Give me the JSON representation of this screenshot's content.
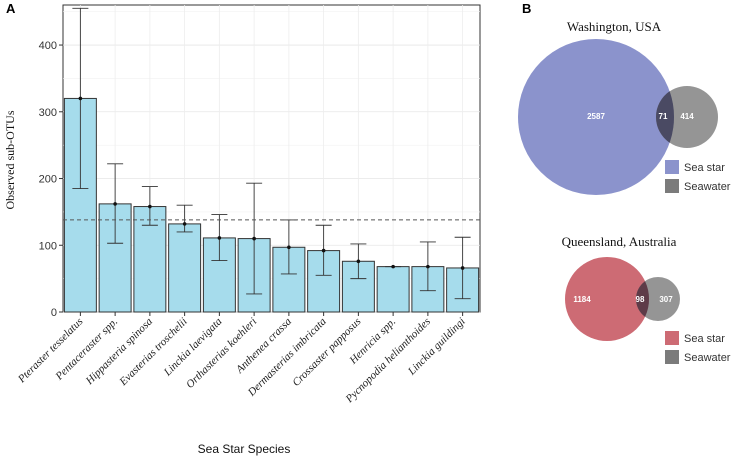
{
  "chart_data": [
    {
      "type": "bar",
      "panel_label": "A",
      "xlabel": "Sea Star Species",
      "ylabel": "Observed sub-OTUs",
      "ylim": [
        0,
        460
      ],
      "yticks": [
        0,
        100,
        200,
        300,
        400
      ],
      "grid": true,
      "reference_line": 138,
      "error_bars": true,
      "bar_color": "#a6dcec",
      "categories": [
        "Pteraster tesselatus",
        "Pentaceraster spp.",
        "Hippasteria spinosa",
        "Evasterias troschelii",
        "Linckia laevigata",
        "Orthasterias koehleri",
        "Anthenea crassa",
        "Dermasterias imbricata",
        "Crossaster papposus",
        "Henricia spp.",
        "Pycnopodia helianthoides",
        "Linckia guildingi"
      ],
      "values": [
        320,
        162,
        158,
        132,
        111,
        110,
        97,
        92,
        76,
        68,
        68,
        66
      ],
      "err_low": [
        185,
        103,
        130,
        120,
        77,
        27,
        57,
        55,
        50,
        68,
        32,
        20
      ],
      "err_high": [
        455,
        222,
        188,
        160,
        146,
        193,
        138,
        130,
        102,
        68,
        105,
        112
      ]
    },
    {
      "type": "venn",
      "panel_label": "B",
      "title": "Washington, USA",
      "sets": [
        {
          "name": "Sea star",
          "only": "2587",
          "color": "#8b93cc"
        },
        {
          "name": "Seawater",
          "only": "414",
          "color": "#7b7b7b"
        }
      ],
      "overlap": "71"
    },
    {
      "type": "venn",
      "title": "Queensland, Australia",
      "sets": [
        {
          "name": "Sea star",
          "only": "1184",
          "color": "#cd6b74"
        },
        {
          "name": "Seawater",
          "only": "307",
          "color": "#7b7b7b"
        }
      ],
      "overlap": "98"
    }
  ]
}
